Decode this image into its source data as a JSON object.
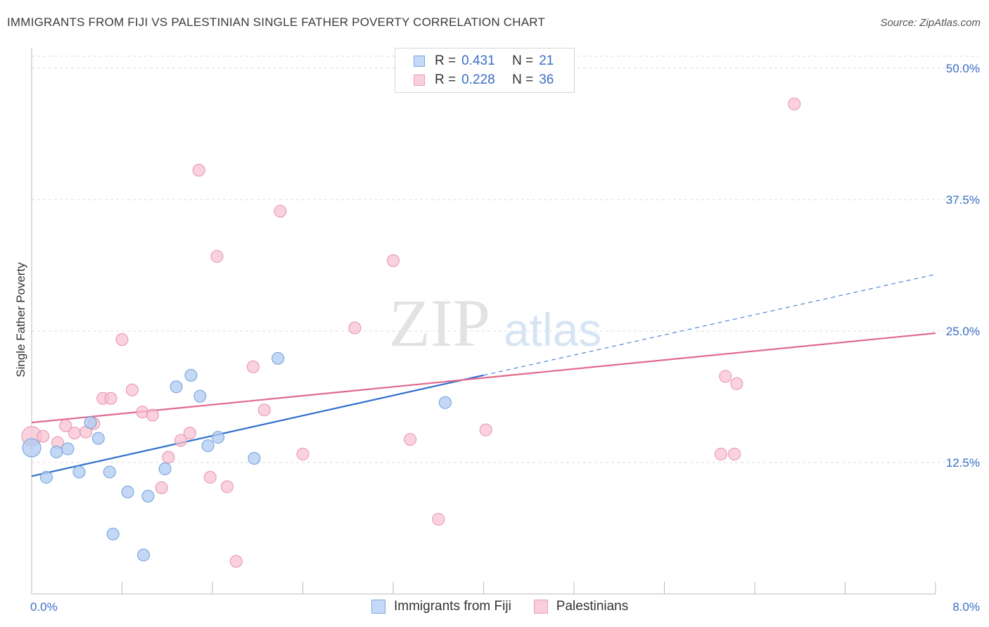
{
  "title": "IMMIGRANTS FROM FIJI VS PALESTINIAN SINGLE FATHER POVERTY CORRELATION CHART",
  "source": "Source: ZipAtlas.com",
  "watermark": {
    "zip": "ZIP",
    "atlas": "atlas"
  },
  "legend": {
    "rows": [
      {
        "r_label": "R =",
        "r_value": "0.431",
        "n_label": "N =",
        "n_value": "21"
      },
      {
        "r_label": "R =",
        "r_value": "0.228",
        "n_label": "N =",
        "n_value": "36"
      }
    ]
  },
  "bottom_legend": {
    "fiji": "Immigrants from Fiji",
    "pal": "Palestinians"
  },
  "colors": {
    "fiji_fill": "#aecbf0",
    "fiji_stroke": "#6f9fdc",
    "fiji_line": "#2f6fcc",
    "pal_fill": "#f7bfd0",
    "pal_stroke": "#e990ad",
    "pal_line": "#e0698f",
    "grid": "#dddddd",
    "tick_label": "#3b6fc4"
  },
  "chart_data": {
    "type": "scatter",
    "title": "IMMIGRANTS FROM FIJI VS PALESTINIAN SINGLE FATHER POVERTY CORRELATION CHART",
    "xlabel": "",
    "ylabel": "Single Father Poverty",
    "xlim": [
      0,
      8
    ],
    "ylim": [
      0,
      50
    ],
    "x_ticks": [
      "0.0%",
      "8.0%"
    ],
    "y_ticks": [
      {
        "value": 12.5,
        "label": "12.5%"
      },
      {
        "value": 25,
        "label": "25.0%"
      },
      {
        "value": 37.5,
        "label": "37.5%"
      },
      {
        "value": 50,
        "label": "50.0%"
      }
    ],
    "grid": true,
    "legend_position": "top-center",
    "series": [
      {
        "name": "Immigrants from Fiji",
        "r": 0.431,
        "n": 21,
        "points": [
          [
            0.0,
            13.9
          ],
          [
            0.13,
            11.1
          ],
          [
            0.22,
            13.5
          ],
          [
            0.32,
            13.8
          ],
          [
            0.42,
            11.6
          ],
          [
            0.52,
            16.3
          ],
          [
            0.59,
            14.8
          ],
          [
            0.69,
            11.6
          ],
          [
            0.85,
            9.7
          ],
          [
            0.72,
            5.7
          ],
          [
            1.03,
            9.3
          ],
          [
            0.99,
            3.7
          ],
          [
            1.18,
            11.9
          ],
          [
            1.28,
            19.7
          ],
          [
            1.41,
            20.8
          ],
          [
            1.49,
            18.8
          ],
          [
            1.56,
            14.1
          ],
          [
            1.65,
            14.9
          ],
          [
            1.97,
            12.9
          ],
          [
            2.18,
            22.4
          ],
          [
            3.66,
            18.2
          ]
        ],
        "trend": {
          "x0": 0.0,
          "y0": 11.2,
          "x1": 4.0,
          "y1": 20.8,
          "dash_to_x": 8.0,
          "dash_to_y": 30.4
        }
      },
      {
        "name": "Palestinians",
        "r": 0.228,
        "n": 36,
        "points": [
          [
            0.0,
            15.0
          ],
          [
            0.1,
            15.0
          ],
          [
            0.23,
            14.4
          ],
          [
            0.3,
            16.0
          ],
          [
            0.38,
            15.3
          ],
          [
            0.48,
            15.4
          ],
          [
            0.55,
            16.2
          ],
          [
            0.63,
            18.6
          ],
          [
            0.7,
            18.6
          ],
          [
            0.8,
            24.2
          ],
          [
            0.89,
            19.4
          ],
          [
            0.98,
            17.3
          ],
          [
            1.07,
            17.0
          ],
          [
            1.15,
            10.1
          ],
          [
            1.21,
            13.0
          ],
          [
            1.32,
            14.6
          ],
          [
            1.4,
            15.3
          ],
          [
            1.48,
            40.3
          ],
          [
            1.58,
            11.1
          ],
          [
            1.64,
            32.1
          ],
          [
            1.73,
            10.2
          ],
          [
            1.81,
            3.1
          ],
          [
            1.96,
            21.6
          ],
          [
            2.06,
            17.5
          ],
          [
            2.2,
            36.4
          ],
          [
            2.4,
            13.3
          ],
          [
            2.86,
            25.3
          ],
          [
            3.2,
            31.7
          ],
          [
            3.35,
            14.7
          ],
          [
            3.6,
            7.1
          ],
          [
            4.02,
            15.6
          ],
          [
            6.1,
            13.3
          ],
          [
            6.22,
            13.3
          ],
          [
            6.14,
            20.7
          ],
          [
            6.24,
            20.0
          ],
          [
            6.75,
            46.6
          ]
        ],
        "trend": {
          "x0": 0.0,
          "y0": 16.3,
          "x1": 8.0,
          "y1": 24.8
        }
      }
    ]
  }
}
